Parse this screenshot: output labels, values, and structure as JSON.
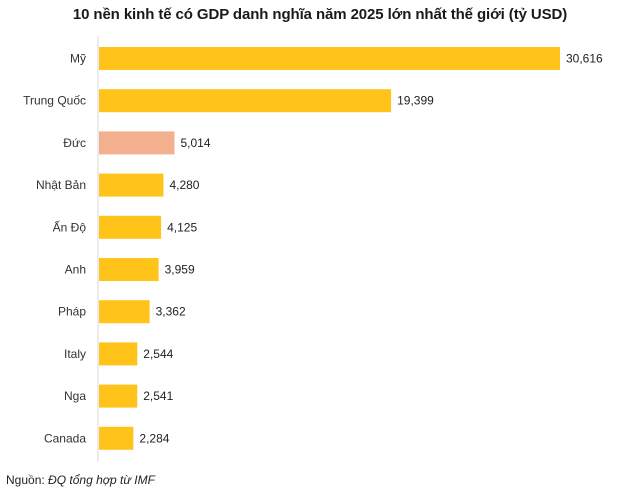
{
  "chart_data": {
    "type": "bar",
    "orientation": "horizontal",
    "title": "10 nền kinh tế có GDP danh nghĩa năm 2025 lớn nhất thế giới (tỷ USD)",
    "xlabel": "",
    "ylabel": "",
    "xlim": [
      0,
      30616
    ],
    "grid": false,
    "categories": [
      "Mỹ",
      "Trung Quốc",
      "Đức",
      "Nhật Bản",
      "Ấn Độ",
      "Anh",
      "Pháp",
      "Italy",
      "Nga",
      "Canada"
    ],
    "values": [
      30616,
      19399,
      5014,
      4280,
      4125,
      3959,
      3362,
      2544,
      2541,
      2284
    ],
    "value_labels": [
      "30,616",
      "19,399",
      "5,014",
      "4,280",
      "4,125",
      "3,959",
      "3,362",
      "2,544",
      "2,541",
      "2,284"
    ],
    "highlight_index": 2,
    "colors": {
      "default": "#FFC31A",
      "highlight": "#F2B08F",
      "axis": "#d9d9d9"
    }
  },
  "source": {
    "label": "Nguồn:",
    "text": "ĐQ tổng hợp từ IMF"
  }
}
